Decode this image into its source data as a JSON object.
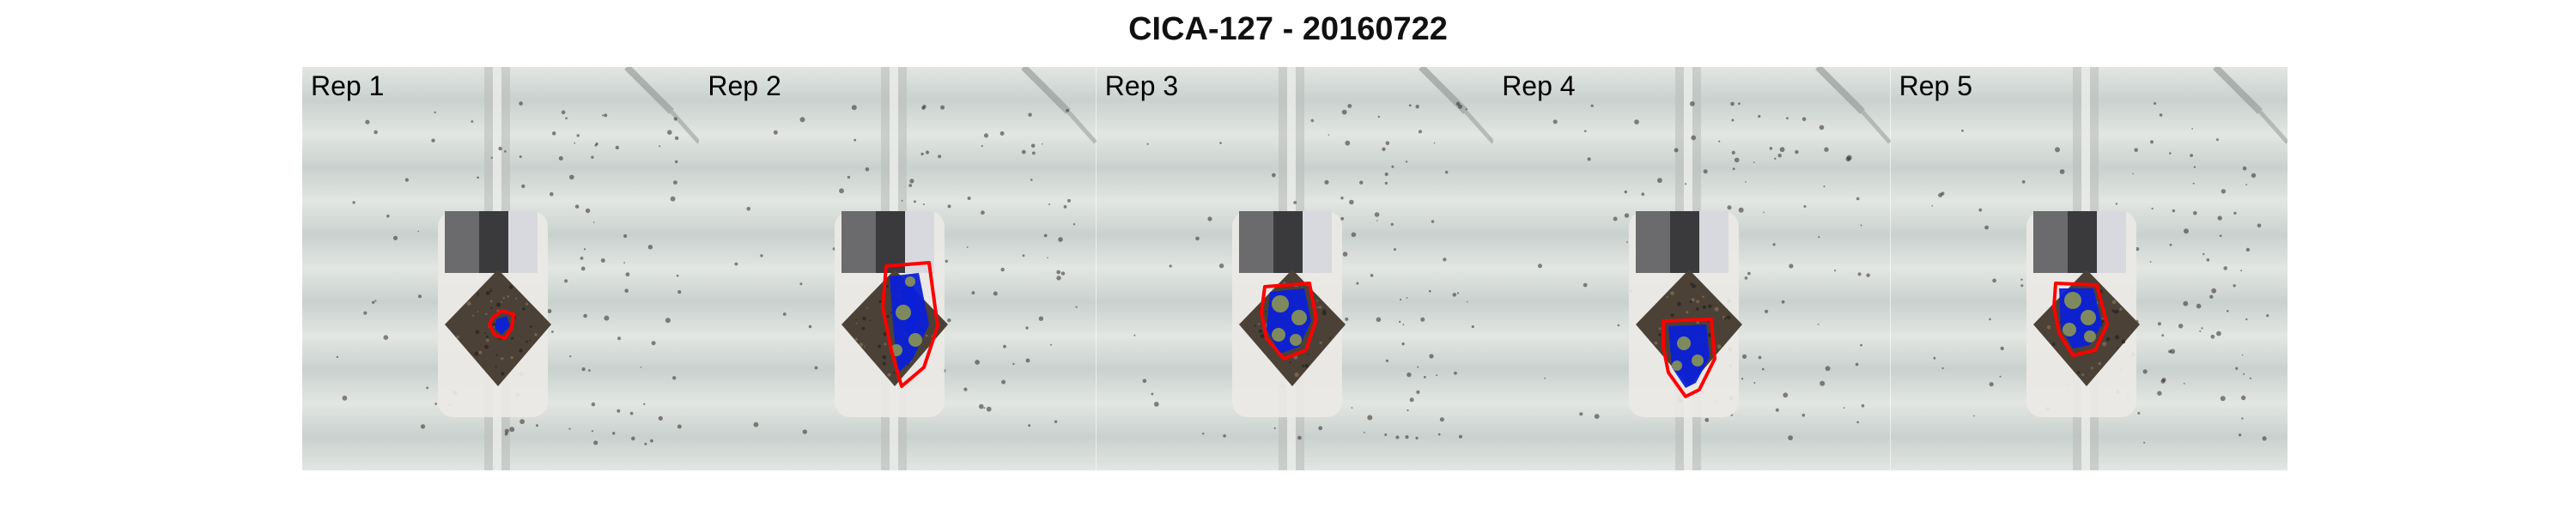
{
  "title": "CICA-127 - 20160722",
  "panels": [
    {
      "label": "Rep 1",
      "overlay_variant": "small-blob"
    },
    {
      "label": "Rep 2",
      "overlay_variant": "tall-polygon"
    },
    {
      "label": "Rep 3",
      "overlay_variant": "mid-polygon"
    },
    {
      "label": "Rep 4",
      "overlay_variant": "low-polygon"
    },
    {
      "label": "Rep 5",
      "overlay_variant": "side-polygon"
    }
  ],
  "colors": {
    "background_stripe_light": "#e3e6e2",
    "background_stripe_dark": "#c9d1cf",
    "rail": "#b8bcb8",
    "pot_body": "#ece9e6",
    "pot_top": "#6b6a6d",
    "soil": "#4b4136",
    "hull_outline": "#ff0000",
    "plant_fill": "#0b20d8",
    "leaf_fill": "#7e8a5d"
  }
}
